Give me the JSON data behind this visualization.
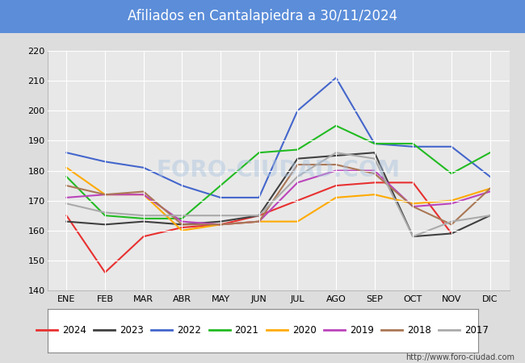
{
  "title": "Afiliados en Cantalapiedra a 30/11/2024",
  "title_color": "#ffffff",
  "title_bg_color": "#5b8dd9",
  "months": [
    "ENE",
    "FEB",
    "MAR",
    "ABR",
    "MAY",
    "JUN",
    "JUL",
    "AGO",
    "SEP",
    "OCT",
    "NOV",
    "DIC"
  ],
  "series": {
    "2024": {
      "color": "#e83030",
      "values": [
        165,
        146,
        158,
        161,
        162,
        165,
        170,
        175,
        176,
        176,
        159,
        null
      ]
    },
    "2023": {
      "color": "#404040",
      "values": [
        163,
        162,
        163,
        162,
        163,
        165,
        184,
        185,
        186,
        158,
        159,
        165
      ]
    },
    "2022": {
      "color": "#4466cc",
      "values": [
        186,
        183,
        181,
        175,
        171,
        171,
        200,
        211,
        189,
        188,
        188,
        178
      ]
    },
    "2021": {
      "color": "#22bb22",
      "values": [
        178,
        165,
        164,
        164,
        175,
        186,
        187,
        195,
        189,
        189,
        179,
        186
      ]
    },
    "2020": {
      "color": "#ffaa00",
      "values": [
        181,
        172,
        172,
        160,
        162,
        163,
        163,
        171,
        172,
        169,
        170,
        174
      ]
    },
    "2019": {
      "color": "#bb44bb",
      "values": [
        171,
        172,
        172,
        163,
        162,
        163,
        176,
        180,
        180,
        168,
        169,
        173
      ]
    },
    "2018": {
      "color": "#aa7755",
      "values": [
        175,
        172,
        173,
        162,
        162,
        163,
        182,
        182,
        179,
        168,
        162,
        174
      ]
    },
    "2017": {
      "color": "#aaaaaa",
      "values": [
        169,
        166,
        165,
        165,
        165,
        165,
        178,
        186,
        184,
        158,
        163,
        165
      ]
    }
  },
  "ylim": [
    140,
    220
  ],
  "yticks": [
    140,
    150,
    160,
    170,
    180,
    190,
    200,
    210,
    220
  ],
  "watermark": "FORO-CIUDAD.COM",
  "url": "http://www.foro-ciudad.com",
  "outer_bg_color": "#dddddd",
  "plot_bg_color": "#e8e8e8",
  "grid_color": "#ffffff"
}
